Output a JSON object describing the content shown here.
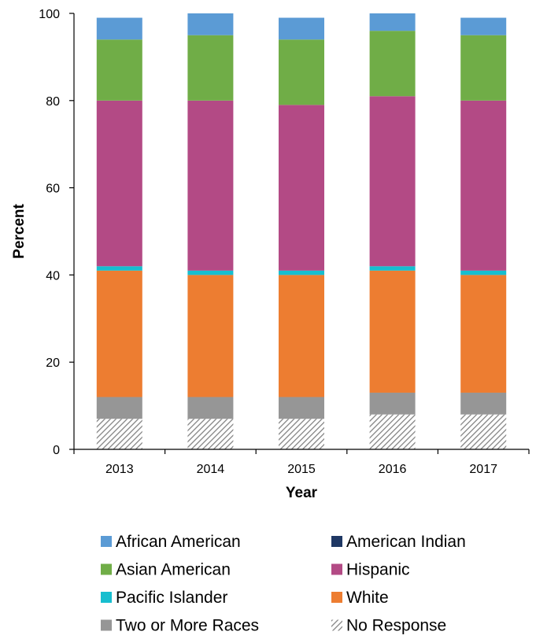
{
  "chart_data": {
    "type": "bar",
    "stacked": true,
    "categories": [
      "2013",
      "2014",
      "2015",
      "2016",
      "2017"
    ],
    "xlabel": "Year",
    "ylabel": "Percent",
    "ylim": [
      0,
      100
    ],
    "yticks": [
      0,
      20,
      40,
      60,
      80,
      100
    ],
    "grid": false,
    "legend_position": "bottom",
    "series": [
      {
        "name": "No Response",
        "key": "no_response",
        "color": "#7f7f7f",
        "pattern": "diagonal-hatch",
        "values": [
          7,
          7,
          7,
          8,
          8
        ]
      },
      {
        "name": "Two or More Races",
        "key": "two_or_more",
        "color": "#969696",
        "values": [
          5,
          5,
          5,
          5,
          5
        ]
      },
      {
        "name": "White",
        "key": "white",
        "color": "#ed7d31",
        "values": [
          29,
          28,
          28,
          28,
          27
        ]
      },
      {
        "name": "Pacific Islander",
        "key": "pacific_islander",
        "color": "#17becf",
        "values": [
          1,
          1,
          1,
          1,
          1
        ]
      },
      {
        "name": "American Indian",
        "key": "american_indian",
        "color": "#1f3864",
        "values": [
          0,
          0,
          0,
          0,
          0
        ]
      },
      {
        "name": "Hispanic",
        "key": "hispanic",
        "color": "#b34a85",
        "values": [
          38,
          39,
          38,
          39,
          39
        ]
      },
      {
        "name": "Asian American",
        "key": "asian_american",
        "color": "#70ad47",
        "values": [
          14,
          15,
          15,
          15,
          15
        ]
      },
      {
        "name": "African American",
        "key": "african_american",
        "color": "#5b9bd5",
        "values": [
          5,
          5,
          5,
          4,
          4
        ]
      }
    ],
    "legend": [
      [
        "African American",
        "American Indian"
      ],
      [
        "Asian American",
        "Hispanic"
      ],
      [
        "Pacific Islander",
        "White"
      ],
      [
        "Two or More Races",
        "No Response"
      ]
    ]
  }
}
